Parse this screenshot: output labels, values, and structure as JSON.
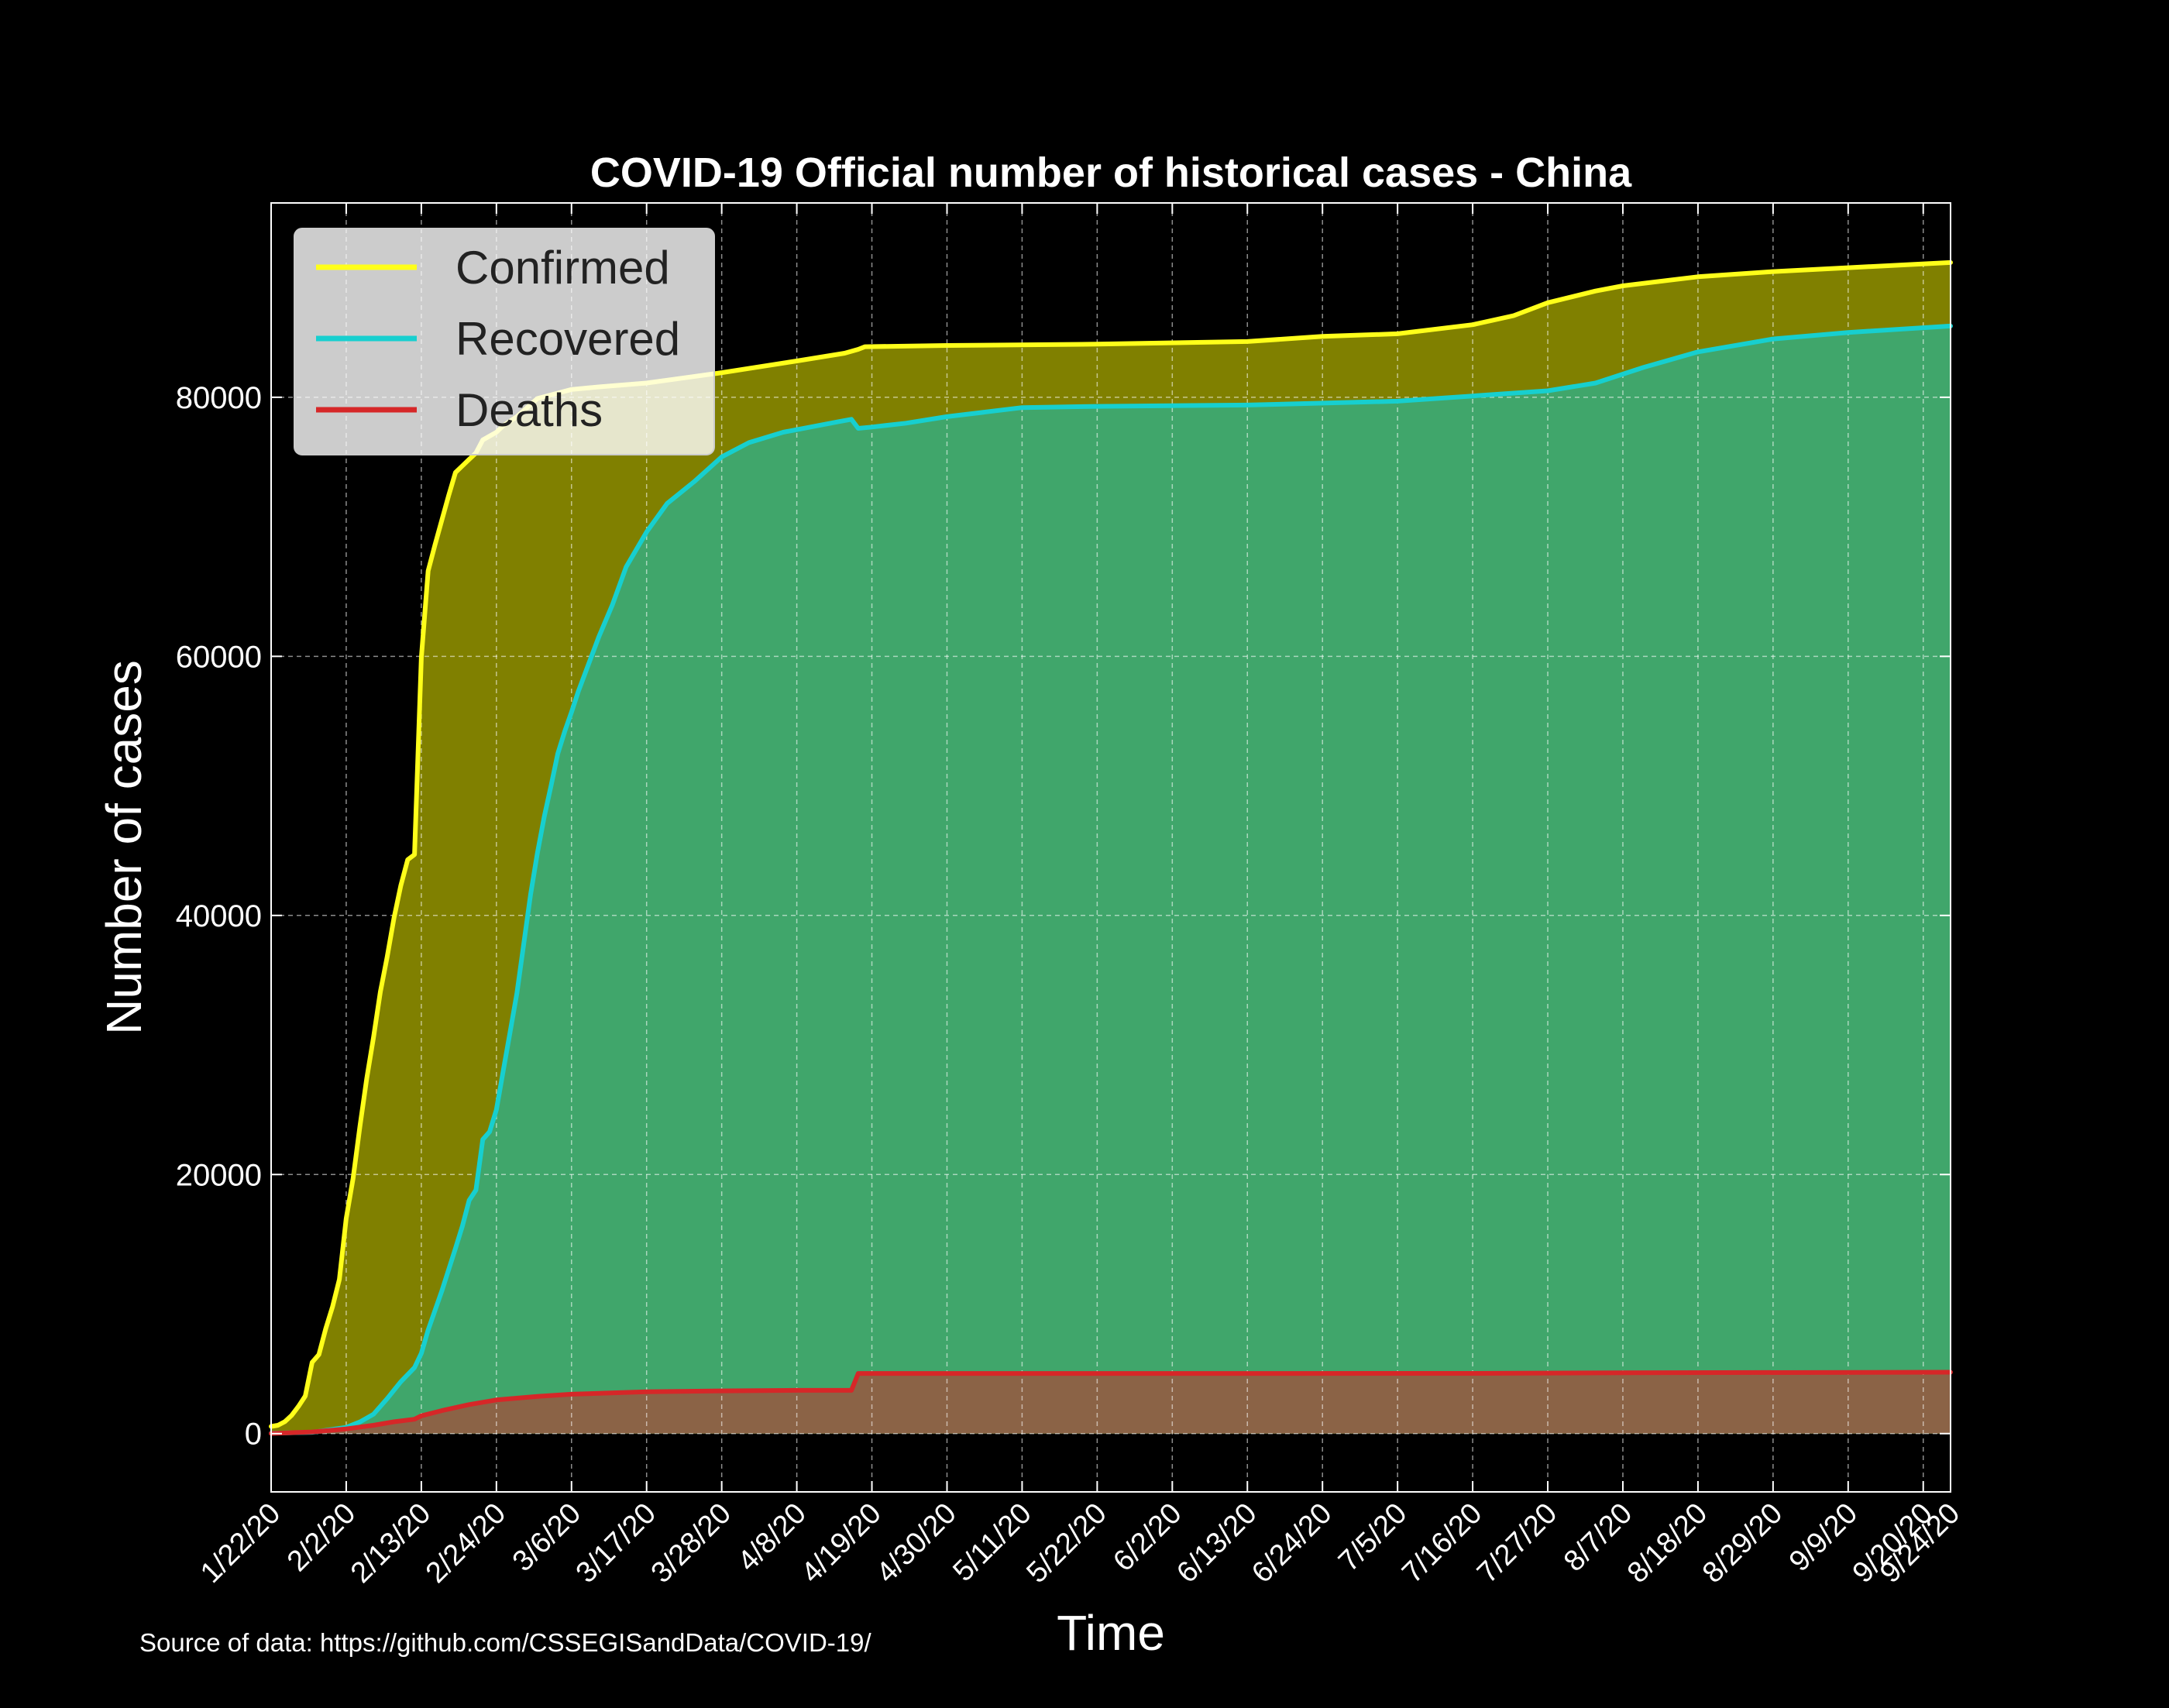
{
  "chart_data": {
    "type": "area",
    "title": "COVID-19 Official number of historical cases - China",
    "xlabel": "Time",
    "ylabel": "Number of cases",
    "source_note": "Source of data: https://github.com/CSSEGISandData/COVID-19/",
    "x_start": "2020-01-22",
    "x_end": "2020-09-24",
    "xlim": [
      "2020-01-22",
      "2020-09-24"
    ],
    "ylim": [
      -4500,
      95000
    ],
    "yticks": [
      0,
      20000,
      40000,
      60000,
      80000
    ],
    "ytick_labels": [
      "0",
      "20000",
      "40000",
      "60000",
      "80000"
    ],
    "xticks": [
      {
        "date": "2020-01-22",
        "label": "1/22/20"
      },
      {
        "date": "2020-02-02",
        "label": "2/2/20"
      },
      {
        "date": "2020-02-13",
        "label": "2/13/20"
      },
      {
        "date": "2020-02-24",
        "label": "2/24/20"
      },
      {
        "date": "2020-03-06",
        "label": "3/6/20"
      },
      {
        "date": "2020-03-17",
        "label": "3/17/20"
      },
      {
        "date": "2020-03-28",
        "label": "3/28/20"
      },
      {
        "date": "2020-04-08",
        "label": "4/8/20"
      },
      {
        "date": "2020-04-19",
        "label": "4/19/20"
      },
      {
        "date": "2020-04-30",
        "label": "4/30/20"
      },
      {
        "date": "2020-05-11",
        "label": "5/11/20"
      },
      {
        "date": "2020-05-22",
        "label": "5/22/20"
      },
      {
        "date": "2020-06-02",
        "label": "6/2/20"
      },
      {
        "date": "2020-06-13",
        "label": "6/13/20"
      },
      {
        "date": "2020-06-24",
        "label": "6/24/20"
      },
      {
        "date": "2020-07-05",
        "label": "7/5/20"
      },
      {
        "date": "2020-07-16",
        "label": "7/16/20"
      },
      {
        "date": "2020-07-27",
        "label": "7/27/20"
      },
      {
        "date": "2020-08-07",
        "label": "8/7/20"
      },
      {
        "date": "2020-08-18",
        "label": "8/18/20"
      },
      {
        "date": "2020-08-29",
        "label": "8/29/20"
      },
      {
        "date": "2020-09-09",
        "label": "9/9/20"
      },
      {
        "date": "2020-09-20",
        "label": "9/20/20"
      },
      {
        "date": "2020-09-24",
        "label": "9/24/20"
      }
    ],
    "grid": true,
    "legend_position": "top-left",
    "background": "#000000",
    "series": [
      {
        "name": "Confirmed",
        "line_color": "#ffff1a",
        "fill_color": "#808000",
        "points": [
          [
            "2020-01-22",
            550
          ],
          [
            "2020-01-23",
            640
          ],
          [
            "2020-01-24",
            920
          ],
          [
            "2020-01-25",
            1400
          ],
          [
            "2020-01-26",
            2100
          ],
          [
            "2020-01-27",
            2900
          ],
          [
            "2020-01-28",
            5500
          ],
          [
            "2020-01-29",
            6100
          ],
          [
            "2020-01-30",
            8100
          ],
          [
            "2020-01-31",
            9800
          ],
          [
            "2020-02-01",
            11900
          ],
          [
            "2020-02-02",
            16600
          ],
          [
            "2020-02-03",
            19700
          ],
          [
            "2020-02-04",
            23700
          ],
          [
            "2020-02-05",
            27400
          ],
          [
            "2020-02-06",
            30600
          ],
          [
            "2020-02-07",
            34100
          ],
          [
            "2020-02-08",
            36800
          ],
          [
            "2020-02-09",
            39800
          ],
          [
            "2020-02-10",
            42300
          ],
          [
            "2020-02-11",
            44300
          ],
          [
            "2020-02-12",
            44700
          ],
          [
            "2020-02-13",
            59900
          ],
          [
            "2020-02-14",
            66600
          ],
          [
            "2020-02-15",
            68600
          ],
          [
            "2020-02-16",
            70500
          ],
          [
            "2020-02-17",
            72400
          ],
          [
            "2020-02-18",
            74200
          ],
          [
            "2020-02-19",
            74700
          ],
          [
            "2020-02-20",
            75200
          ],
          [
            "2020-02-21",
            75700
          ],
          [
            "2020-02-22",
            76700
          ],
          [
            "2020-02-23",
            77000
          ],
          [
            "2020-02-24",
            77300
          ],
          [
            "2020-02-25",
            77800
          ],
          [
            "2020-02-27",
            78500
          ],
          [
            "2020-03-01",
            79900
          ],
          [
            "2020-03-06",
            80600
          ],
          [
            "2020-03-10",
            80800
          ],
          [
            "2020-03-17",
            81100
          ],
          [
            "2020-03-28",
            81900
          ],
          [
            "2020-04-08",
            82800
          ],
          [
            "2020-04-15",
            83400
          ],
          [
            "2020-04-17",
            83700
          ],
          [
            "2020-04-18",
            83900
          ],
          [
            "2020-04-30",
            84000
          ],
          [
            "2020-05-22",
            84100
          ],
          [
            "2020-06-13",
            84300
          ],
          [
            "2020-06-24",
            84700
          ],
          [
            "2020-07-05",
            84900
          ],
          [
            "2020-07-16",
            85600
          ],
          [
            "2020-07-22",
            86300
          ],
          [
            "2020-07-27",
            87300
          ],
          [
            "2020-08-03",
            88200
          ],
          [
            "2020-08-07",
            88600
          ],
          [
            "2020-08-18",
            89300
          ],
          [
            "2020-08-29",
            89700
          ],
          [
            "2020-09-09",
            90000
          ],
          [
            "2020-09-24",
            90400
          ]
        ]
      },
      {
        "name": "Recovered",
        "line_color": "#17cfcf",
        "fill_color": "#40a66b",
        "points": [
          [
            "2020-01-22",
            30
          ],
          [
            "2020-01-28",
            100
          ],
          [
            "2020-02-02",
            480
          ],
          [
            "2020-02-04",
            900
          ],
          [
            "2020-02-06",
            1500
          ],
          [
            "2020-02-08",
            2700
          ],
          [
            "2020-02-10",
            4000
          ],
          [
            "2020-02-12",
            5100
          ],
          [
            "2020-02-13",
            6200
          ],
          [
            "2020-02-14",
            8000
          ],
          [
            "2020-02-16",
            11000
          ],
          [
            "2020-02-18",
            14300
          ],
          [
            "2020-02-19",
            16000
          ],
          [
            "2020-02-20",
            18000
          ],
          [
            "2020-02-21",
            18800
          ],
          [
            "2020-02-22",
            22700
          ],
          [
            "2020-02-23",
            23300
          ],
          [
            "2020-02-24",
            25000
          ],
          [
            "2020-02-25",
            28000
          ],
          [
            "2020-02-26",
            31000
          ],
          [
            "2020-02-27",
            34000
          ],
          [
            "2020-02-28",
            37800
          ],
          [
            "2020-02-29",
            41600
          ],
          [
            "2020-03-01",
            44800
          ],
          [
            "2020-03-02",
            47600
          ],
          [
            "2020-03-03",
            50000
          ],
          [
            "2020-03-04",
            52500
          ],
          [
            "2020-03-05",
            54200
          ],
          [
            "2020-03-06",
            55700
          ],
          [
            "2020-03-07",
            57300
          ],
          [
            "2020-03-08",
            58700
          ],
          [
            "2020-03-10",
            61500
          ],
          [
            "2020-03-12",
            64000
          ],
          [
            "2020-03-14",
            66900
          ],
          [
            "2020-03-17",
            69600
          ],
          [
            "2020-03-20",
            71800
          ],
          [
            "2020-03-24",
            73500
          ],
          [
            "2020-03-28",
            75400
          ],
          [
            "2020-04-01",
            76500
          ],
          [
            "2020-04-06",
            77300
          ],
          [
            "2020-04-10",
            77700
          ],
          [
            "2020-04-14",
            78100
          ],
          [
            "2020-04-16",
            78300
          ],
          [
            "2020-04-17",
            77600
          ],
          [
            "2020-04-19",
            77700
          ],
          [
            "2020-04-24",
            78000
          ],
          [
            "2020-04-30",
            78500
          ],
          [
            "2020-05-11",
            79200
          ],
          [
            "2020-05-22",
            79300
          ],
          [
            "2020-06-13",
            79400
          ],
          [
            "2020-07-05",
            79700
          ],
          [
            "2020-07-16",
            80100
          ],
          [
            "2020-07-27",
            80500
          ],
          [
            "2020-08-03",
            81100
          ],
          [
            "2020-08-10",
            82300
          ],
          [
            "2020-08-18",
            83500
          ],
          [
            "2020-08-29",
            84500
          ],
          [
            "2020-09-09",
            85000
          ],
          [
            "2020-09-24",
            85500
          ]
        ]
      },
      {
        "name": "Deaths",
        "line_color": "#d62728",
        "fill_color": "#8b6346",
        "points": [
          [
            "2020-01-22",
            17
          ],
          [
            "2020-01-28",
            130
          ],
          [
            "2020-02-02",
            360
          ],
          [
            "2020-02-06",
            640
          ],
          [
            "2020-02-09",
            910
          ],
          [
            "2020-02-12",
            1110
          ],
          [
            "2020-02-13",
            1370
          ],
          [
            "2020-02-16",
            1770
          ],
          [
            "2020-02-20",
            2240
          ],
          [
            "2020-02-24",
            2600
          ],
          [
            "2020-03-01",
            2870
          ],
          [
            "2020-03-06",
            3040
          ],
          [
            "2020-03-17",
            3230
          ],
          [
            "2020-03-28",
            3300
          ],
          [
            "2020-04-08",
            3340
          ],
          [
            "2020-04-16",
            3340
          ],
          [
            "2020-04-17",
            4640
          ],
          [
            "2020-04-19",
            4640
          ],
          [
            "2020-06-02",
            4640
          ],
          [
            "2020-07-16",
            4650
          ],
          [
            "2020-08-07",
            4690
          ],
          [
            "2020-09-24",
            4740
          ]
        ]
      }
    ]
  }
}
